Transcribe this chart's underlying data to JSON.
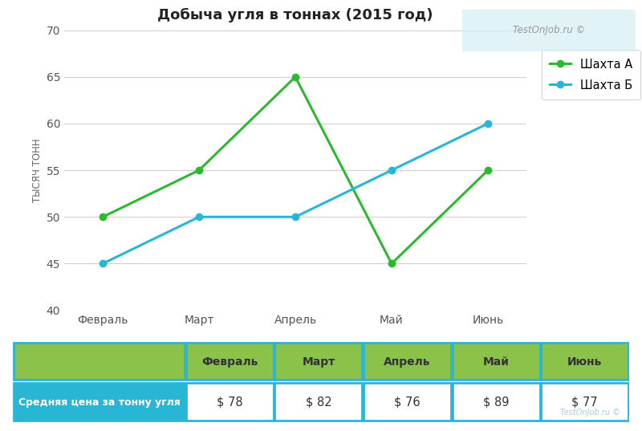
{
  "title": "Добыча угля в тоннах (2015 год)",
  "ylabel": "ТЫСЯЧ ТОНН",
  "months": [
    "Февраль",
    "Март",
    "Апрель",
    "Май",
    "Июнь"
  ],
  "shakhta_a": [
    50,
    55,
    65,
    45,
    55
  ],
  "shakhta_b": [
    45,
    50,
    50,
    55,
    60
  ],
  "color_a": "#2db832",
  "color_b": "#29b6d4",
  "ylim": [
    40,
    70
  ],
  "yticks": [
    40,
    45,
    50,
    55,
    60,
    65,
    70
  ],
  "legend_a": "Шахта А",
  "legend_b": "Шахта Б",
  "table_row_label": "Средняя цена за тонну угля",
  "table_values": [
    "$ 78",
    "$ 82",
    "$ 76",
    "$ 89",
    "$ 77"
  ],
  "table_header_bg": "#8bc34a",
  "table_cell_bg": "#29b6d4",
  "table_border_color": "#29b6d4",
  "watermark": "TestOnJob.ru ©",
  "bg_color": "#ffffff",
  "grid_color": "#d0d0d0",
  "marker_size": 6,
  "line_width": 2.2
}
